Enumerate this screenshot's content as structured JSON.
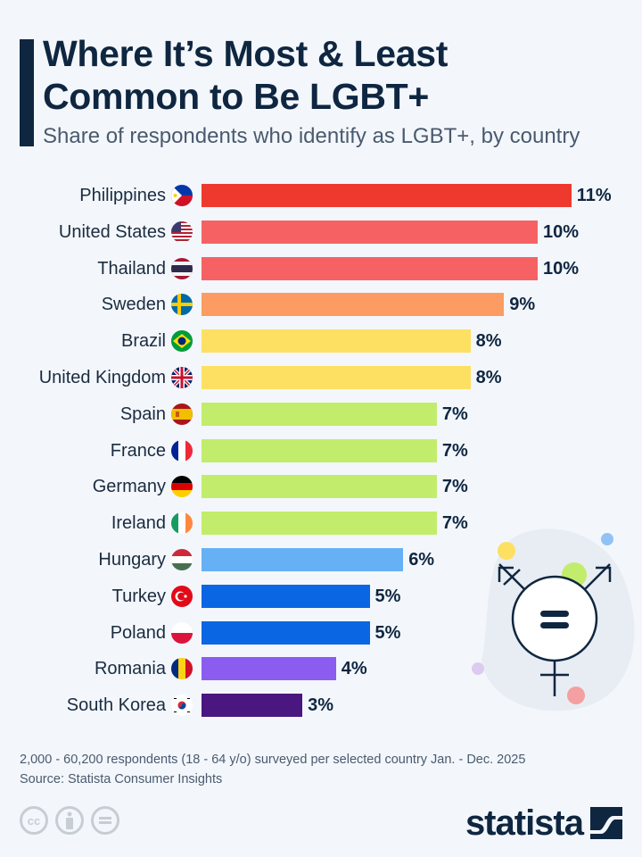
{
  "header": {
    "title_line1": "Where It’s Most & Least",
    "title_line2": "Common to Be LGBT+",
    "subtitle": "Share of respondents who identify as LGBT+, by country"
  },
  "chart_data": {
    "type": "bar",
    "orientation": "horizontal",
    "title": "Where It’s Most & Least Common to Be LGBT+",
    "subtitle": "Share of respondents who identify as LGBT+, by country",
    "xlabel": "",
    "ylabel": "",
    "unit": "%",
    "xlim": [
      0,
      11
    ],
    "grid": false,
    "legend": "none",
    "categories": [
      "Philippines",
      "United States",
      "Thailand",
      "Sweden",
      "Brazil",
      "United Kingdom",
      "Spain",
      "France",
      "Germany",
      "Ireland",
      "Hungary",
      "Turkey",
      "Poland",
      "Romania",
      "South Korea"
    ],
    "values": [
      11,
      10,
      10,
      9,
      8,
      8,
      7,
      7,
      7,
      7,
      6,
      5,
      5,
      4,
      3
    ],
    "value_labels": [
      "11%",
      "10%",
      "10%",
      "9%",
      "8%",
      "8%",
      "7%",
      "7%",
      "7%",
      "7%",
      "6%",
      "5%",
      "5%",
      "4%",
      "3%"
    ],
    "bar_colors": [
      "#ee3a2e",
      "#f66264",
      "#f66264",
      "#fc9c62",
      "#fde061",
      "#fde061",
      "#c2ec6c",
      "#c2ec6c",
      "#c2ec6c",
      "#c2ec6c",
      "#66b0f6",
      "#0b66e4",
      "#0b66e4",
      "#8b5cf0",
      "#4a1680"
    ],
    "flags": [
      "flag-philippines",
      "flag-united-states",
      "flag-thailand",
      "flag-sweden",
      "flag-brazil",
      "flag-united-kingdom",
      "flag-spain",
      "flag-france",
      "flag-germany",
      "flag-ireland",
      "flag-hungary",
      "flag-turkey",
      "flag-poland",
      "flag-romania",
      "flag-south-korea"
    ]
  },
  "footer": {
    "note": "2,000 - 60,200 respondents (18 - 64 y/o) surveyed per selected country Jan. - Dec. 2025",
    "source": "Source: Statista Consumer Insights",
    "license_icons": [
      "cc-icon",
      "attribution-icon",
      "no-derivatives-icon"
    ],
    "cc_label": "cc",
    "logo_text": "statista"
  },
  "decoration": {
    "icon": "transgender-symbol-icon",
    "dot_colors": [
      "#fde061",
      "#90c2f6",
      "#c2ec6c",
      "#dccbf0",
      "#f4a0a0"
    ]
  }
}
